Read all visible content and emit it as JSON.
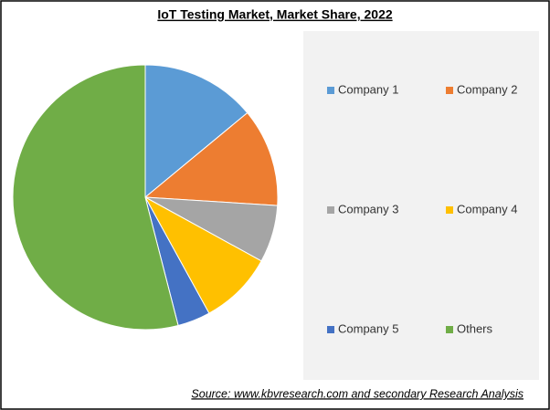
{
  "chart_data": {
    "type": "pie",
    "title": "IoT Testing Market, Market Share, 2022",
    "categories": [
      "Company 1",
      "Company 2",
      "Company 3",
      "Company 4",
      "Company 5",
      "Others"
    ],
    "values": [
      14,
      12,
      7,
      9,
      4,
      54
    ],
    "colors": [
      "#5b9bd5",
      "#ed7d31",
      "#a5a5a5",
      "#ffc000",
      "#4472c4",
      "#70ad47"
    ],
    "source": "Source: www.kbvresearch.com and secondary Research Analysis"
  }
}
